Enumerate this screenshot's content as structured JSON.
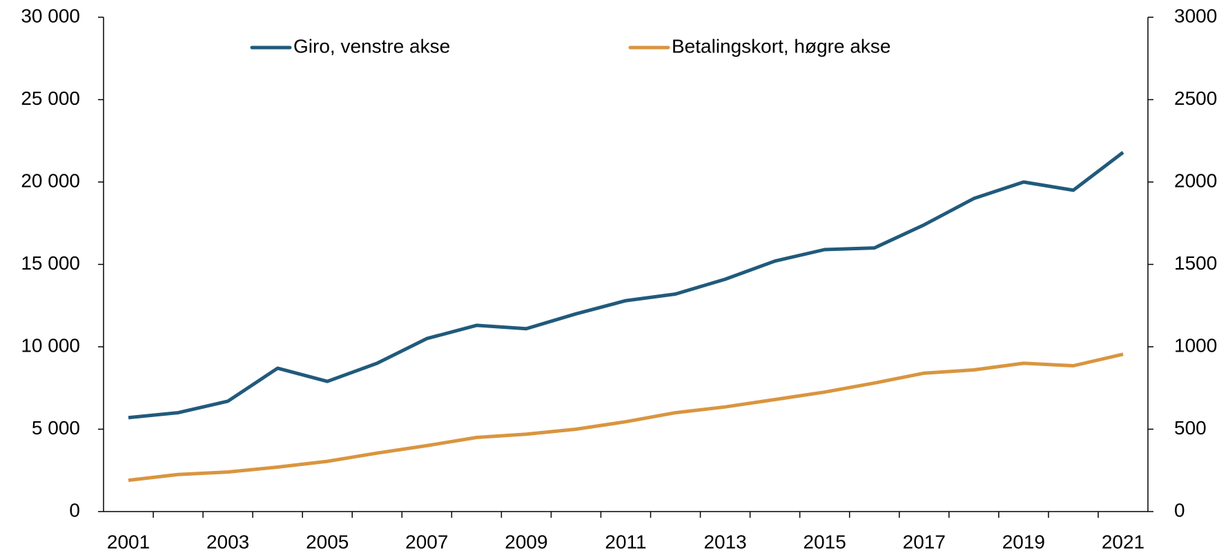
{
  "chart_data": {
    "type": "line",
    "categories": [
      "2001",
      null,
      "2003",
      null,
      "2005",
      null,
      "2007",
      null,
      "2009",
      null,
      "2011",
      null,
      "2013",
      null,
      "2015",
      null,
      "2017",
      null,
      "2019",
      null,
      "2021"
    ],
    "series": [
      {
        "name": "Giro, venstre akse",
        "color": "#215a7b",
        "axis": "y",
        "values": [
          5700,
          6000,
          6700,
          8700,
          7900,
          9000,
          10500,
          11300,
          11100,
          12000,
          12800,
          13200,
          14100,
          15200,
          15900,
          16000,
          17400,
          19000,
          20000,
          19500,
          21800
        ]
      },
      {
        "name": "Betalingskort, høgre akse",
        "color": "#d9953f",
        "axis": "y2",
        "values": [
          190,
          225,
          240,
          270,
          305,
          355,
          400,
          450,
          470,
          500,
          545,
          600,
          635,
          680,
          725,
          780,
          840,
          860,
          900,
          885,
          955
        ]
      }
    ],
    "ylim": [
      0,
      30000
    ],
    "yticks": [
      0,
      {
        "value": 5000,
        "label": "5 000"
      },
      {
        "value": 10000,
        "label": "10 000"
      },
      {
        "value": 15000,
        "label": "15 000"
      },
      {
        "value": 20000,
        "label": "20 000"
      },
      {
        "value": 25000,
        "label": "25 000"
      },
      {
        "value": 30000,
        "label": "30 000"
      }
    ],
    "y2lim": [
      0,
      3000
    ],
    "y2ticks": [
      0,
      500,
      1000,
      1500,
      2000,
      2500,
      3000
    ],
    "grid": false,
    "legend": "top"
  }
}
